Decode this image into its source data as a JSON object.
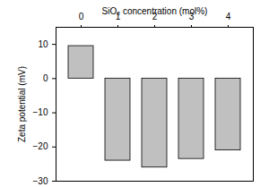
{
  "chart_data": {
    "type": "bar",
    "x_label": "SiO₂ concentration (mol%)",
    "y_label": "Zeta potential (mV)",
    "categories": [
      "0",
      "1",
      "2",
      "3",
      "4"
    ],
    "values": [
      9.5,
      -24,
      -26,
      -23.5,
      -21
    ],
    "color": "#c0c0c0",
    "ylim": [
      -30,
      15
    ],
    "yticks": [
      -30,
      -20,
      -10,
      0,
      10
    ],
    "grid": false
  }
}
